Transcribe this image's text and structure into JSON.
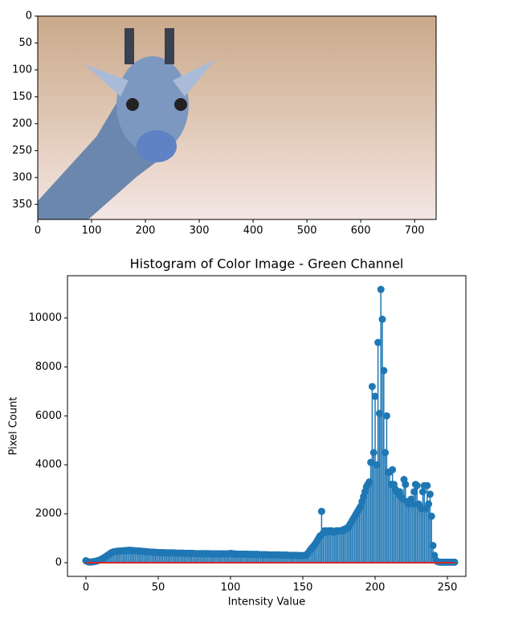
{
  "chart_data": [
    {
      "type": "image",
      "xlim": [
        0,
        740
      ],
      "ylim": [
        378,
        0
      ],
      "xticks": [
        0,
        100,
        200,
        300,
        400,
        500,
        600,
        700
      ],
      "yticks": [
        0,
        50,
        100,
        150,
        200,
        250,
        300,
        350
      ]
    },
    {
      "type": "stem",
      "title": "Histogram of Color Image - Green Channel",
      "xlabel": "Intensity Value",
      "ylabel": "Pixel Count",
      "color": "#1f77b4",
      "baseline_color": "#d62728",
      "xlim": [
        -12.75,
        262.75
      ],
      "ylim": [
        -559,
        11729
      ],
      "xticks": [
        0,
        50,
        100,
        150,
        200,
        250
      ],
      "yticks": [
        0,
        2000,
        4000,
        6000,
        8000,
        10000
      ],
      "values": [
        80,
        50,
        30,
        25,
        30,
        40,
        50,
        60,
        80,
        100,
        120,
        150,
        180,
        220,
        260,
        300,
        340,
        380,
        420,
        440,
        450,
        460,
        470,
        470,
        480,
        480,
        490,
        490,
        500,
        500,
        510,
        500,
        500,
        490,
        490,
        480,
        480,
        470,
        470,
        460,
        460,
        450,
        450,
        440,
        440,
        430,
        430,
        430,
        420,
        420,
        420,
        410,
        410,
        410,
        410,
        400,
        400,
        400,
        400,
        400,
        400,
        400,
        390,
        390,
        390,
        390,
        390,
        390,
        380,
        380,
        380,
        380,
        380,
        380,
        380,
        370,
        370,
        370,
        370,
        370,
        370,
        370,
        370,
        370,
        370,
        370,
        360,
        360,
        360,
        360,
        360,
        360,
        360,
        360,
        360,
        360,
        360,
        360,
        360,
        370,
        380,
        370,
        360,
        360,
        350,
        350,
        350,
        350,
        350,
        350,
        350,
        350,
        350,
        340,
        340,
        340,
        340,
        340,
        340,
        340,
        330,
        330,
        330,
        330,
        330,
        330,
        320,
        320,
        320,
        320,
        320,
        320,
        320,
        320,
        310,
        310,
        310,
        310,
        310,
        310,
        300,
        300,
        300,
        300,
        300,
        300,
        300,
        290,
        290,
        290,
        290,
        290,
        300,
        350,
        420,
        500,
        580,
        650,
        720,
        800,
        900,
        1000,
        1100,
        2100,
        1200,
        1300,
        1300,
        1250,
        1300,
        1300,
        1300,
        1250,
        1250,
        1300,
        1300,
        1300,
        1300,
        1300,
        1350,
        1350,
        1400,
        1400,
        1500,
        1600,
        1700,
        1800,
        1900,
        2000,
        2100,
        2200,
        2300,
        2500,
        2700,
        2900,
        3100,
        3200,
        3300,
        4100,
        7200,
        4500,
        6800,
        4000,
        9000,
        6100,
        11170,
        9950,
        7850,
        4500,
        6000,
        3700,
        3700,
        3200,
        3800,
        3200,
        3000,
        2900,
        2800,
        2900,
        2700,
        2600,
        3400,
        3200,
        2500,
        2400,
        2500,
        2600,
        2400,
        2900,
        3200,
        3150,
        2400,
        2300,
        2200,
        2900,
        3150,
        2200,
        3150,
        2400,
        2800,
        1900,
        700,
        300,
        100,
        50,
        30,
        20,
        20,
        20,
        20,
        20,
        20,
        20,
        20,
        20,
        20,
        20
      ]
    }
  ]
}
